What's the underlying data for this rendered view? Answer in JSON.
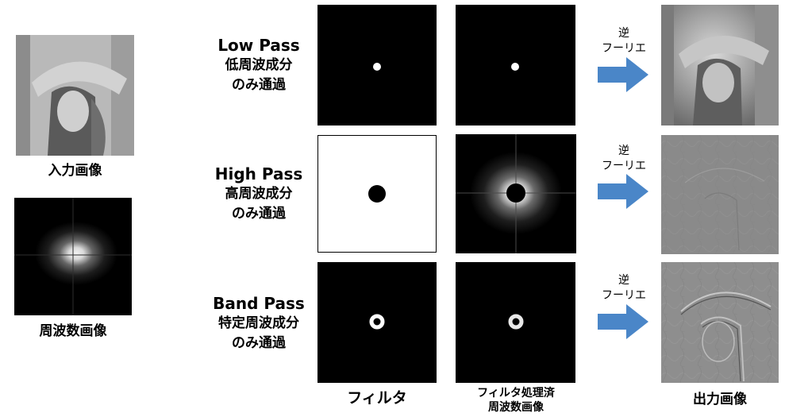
{
  "left": {
    "input_caption": "入力画像",
    "freq_caption": "周波数画像"
  },
  "rows": [
    {
      "name_en": "Low Pass",
      "line1": "低周波成分",
      "line2": "のみ通過",
      "inverse_top": "逆",
      "inverse_bottom": "フーリエ"
    },
    {
      "name_en": "High Pass",
      "line1": "高周波成分",
      "line2": "のみ通過",
      "inverse_top": "逆",
      "inverse_bottom": "フーリエ"
    },
    {
      "name_en": "Band Pass",
      "line1": "特定周波成分",
      "line2": "のみ通過",
      "inverse_top": "逆",
      "inverse_bottom": "フーリエ"
    }
  ],
  "bottom": {
    "filter_label": "フィルタ",
    "processed_line1": "フィルタ処理済",
    "processed_line2": "周波数画像",
    "output_label": "出力画像"
  },
  "colors": {
    "arrow": "#4a86c8",
    "black": "#000000",
    "white": "#ffffff",
    "gray": "#8a8a8a"
  }
}
